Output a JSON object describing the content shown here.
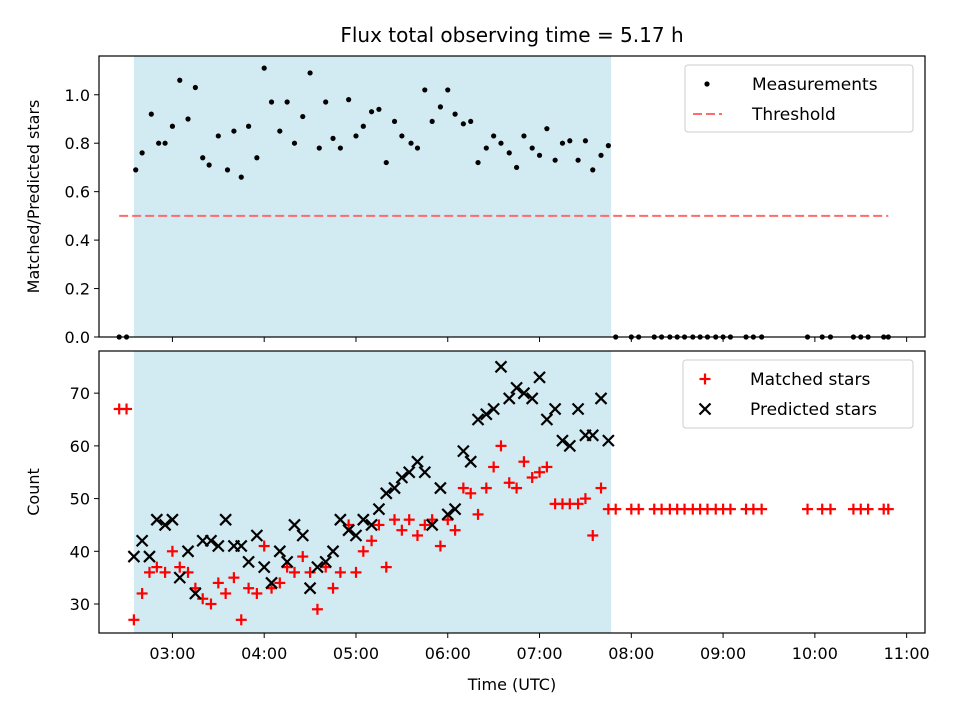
{
  "figure": {
    "title": "Flux total observing time = 5.17 h"
  },
  "colors": {
    "shade": "#add8e6",
    "threshold": "#ff6b6b",
    "matched": "#ff0000",
    "predicted": "#000000",
    "measurement": "#000000"
  },
  "chart_data": [
    {
      "type": "scatter",
      "ylabel": "Matched/Predicted stars",
      "xlim": [
        2.2,
        11.2
      ],
      "ylim": [
        0,
        1.16
      ],
      "yticks": [
        0.0,
        0.2,
        0.4,
        0.6,
        0.8,
        1.0
      ],
      "ytick_labels": [
        "0.0",
        "0.2",
        "0.4",
        "0.6",
        "0.8",
        "1.0"
      ],
      "shaded_region": [
        2.58,
        7.78
      ],
      "legend": {
        "placement": "top-right",
        "entries": [
          "Measurements",
          "Threshold"
        ]
      },
      "threshold": {
        "name": "Threshold",
        "y": 0.5,
        "x_range": [
          2.42,
          10.8
        ]
      },
      "series": [
        {
          "name": "Measurements",
          "marker": "dot",
          "points": [
            [
              2.42,
              0
            ],
            [
              2.5,
              0
            ],
            [
              2.6,
              0.69
            ],
            [
              2.67,
              0.76
            ],
            [
              2.77,
              0.92
            ],
            [
              2.85,
              0.8
            ],
            [
              2.92,
              0.8
            ],
            [
              3.0,
              0.87
            ],
            [
              3.08,
              1.06
            ],
            [
              3.17,
              0.9
            ],
            [
              3.25,
              1.03
            ],
            [
              3.33,
              0.74
            ],
            [
              3.4,
              0.71
            ],
            [
              3.5,
              0.83
            ],
            [
              3.6,
              0.69
            ],
            [
              3.67,
              0.85
            ],
            [
              3.75,
              0.66
            ],
            [
              3.83,
              0.87
            ],
            [
              3.92,
              0.74
            ],
            [
              4.0,
              1.11
            ],
            [
              4.08,
              0.97
            ],
            [
              4.17,
              0.85
            ],
            [
              4.25,
              0.97
            ],
            [
              4.33,
              0.8
            ],
            [
              4.42,
              0.91
            ],
            [
              4.5,
              1.09
            ],
            [
              4.6,
              0.78
            ],
            [
              4.67,
              0.97
            ],
            [
              4.75,
              0.82
            ],
            [
              4.83,
              0.78
            ],
            [
              4.92,
              0.98
            ],
            [
              5.0,
              0.83
            ],
            [
              5.08,
              0.87
            ],
            [
              5.17,
              0.93
            ],
            [
              5.25,
              0.94
            ],
            [
              5.33,
              0.72
            ],
            [
              5.42,
              0.89
            ],
            [
              5.5,
              0.83
            ],
            [
              5.6,
              0.8
            ],
            [
              5.67,
              0.78
            ],
            [
              5.75,
              1.02
            ],
            [
              5.83,
              0.89
            ],
            [
              5.92,
              0.95
            ],
            [
              6.0,
              1.02
            ],
            [
              6.08,
              0.92
            ],
            [
              6.17,
              0.88
            ],
            [
              6.25,
              0.89
            ],
            [
              6.33,
              0.72
            ],
            [
              6.42,
              0.78
            ],
            [
              6.5,
              0.83
            ],
            [
              6.58,
              0.8
            ],
            [
              6.67,
              0.76
            ],
            [
              6.75,
              0.7
            ],
            [
              6.83,
              0.83
            ],
            [
              6.92,
              0.78
            ],
            [
              7.0,
              0.75
            ],
            [
              7.08,
              0.86
            ],
            [
              7.17,
              0.73
            ],
            [
              7.25,
              0.8
            ],
            [
              7.33,
              0.81
            ],
            [
              7.42,
              0.73
            ],
            [
              7.5,
              0.81
            ],
            [
              7.58,
              0.69
            ],
            [
              7.67,
              0.75
            ],
            [
              7.75,
              0.79
            ],
            [
              7.83,
              0
            ],
            [
              8.0,
              0
            ],
            [
              8.08,
              0
            ],
            [
              8.25,
              0
            ],
            [
              8.33,
              0
            ],
            [
              8.42,
              0
            ],
            [
              8.5,
              0
            ],
            [
              8.58,
              0
            ],
            [
              8.67,
              0
            ],
            [
              8.75,
              0
            ],
            [
              8.83,
              0
            ],
            [
              8.92,
              0
            ],
            [
              9.0,
              0
            ],
            [
              9.08,
              0
            ],
            [
              9.25,
              0
            ],
            [
              9.33,
              0
            ],
            [
              9.42,
              0
            ],
            [
              9.92,
              0
            ],
            [
              10.08,
              0
            ],
            [
              10.17,
              0
            ],
            [
              10.42,
              0
            ],
            [
              10.5,
              0
            ],
            [
              10.58,
              0
            ],
            [
              10.75,
              0
            ],
            [
              10.8,
              0
            ]
          ]
        }
      ]
    },
    {
      "type": "scatter",
      "xlabel": "Time (UTC)",
      "ylabel": "Count",
      "xlim": [
        2.2,
        11.2
      ],
      "ylim": [
        24.5,
        78
      ],
      "xticks": [
        3,
        4,
        5,
        6,
        7,
        8,
        9,
        10,
        11
      ],
      "xtick_labels": [
        "03:00",
        "04:00",
        "05:00",
        "06:00",
        "07:00",
        "08:00",
        "09:00",
        "10:00",
        "11:00"
      ],
      "yticks": [
        30,
        40,
        50,
        60,
        70
      ],
      "ytick_labels": [
        "30",
        "40",
        "50",
        "60",
        "70"
      ],
      "shaded_region": [
        2.58,
        7.78
      ],
      "legend": {
        "placement": "top-right",
        "entries": [
          "Matched stars",
          "Predicted stars"
        ]
      },
      "series": [
        {
          "name": "Matched stars",
          "marker": "plus",
          "points": [
            [
              2.42,
              67
            ],
            [
              2.5,
              67
            ],
            [
              2.58,
              27
            ],
            [
              2.67,
              32
            ],
            [
              2.75,
              36
            ],
            [
              2.83,
              37
            ],
            [
              2.92,
              36
            ],
            [
              3.0,
              40
            ],
            [
              3.08,
              37
            ],
            [
              3.17,
              36
            ],
            [
              3.25,
              33
            ],
            [
              3.33,
              31
            ],
            [
              3.42,
              30
            ],
            [
              3.5,
              34
            ],
            [
              3.58,
              32
            ],
            [
              3.67,
              35
            ],
            [
              3.75,
              27
            ],
            [
              3.83,
              33
            ],
            [
              3.92,
              32
            ],
            [
              4.0,
              41
            ],
            [
              4.08,
              33
            ],
            [
              4.17,
              34
            ],
            [
              4.25,
              37
            ],
            [
              4.33,
              36
            ],
            [
              4.42,
              39
            ],
            [
              4.5,
              36
            ],
            [
              4.58,
              29
            ],
            [
              4.67,
              37
            ],
            [
              4.75,
              33
            ],
            [
              4.83,
              36
            ],
            [
              4.92,
              45
            ],
            [
              5.0,
              36
            ],
            [
              5.08,
              40
            ],
            [
              5.17,
              42
            ],
            [
              5.25,
              45
            ],
            [
              5.33,
              37
            ],
            [
              5.42,
              46
            ],
            [
              5.5,
              44
            ],
            [
              5.58,
              46
            ],
            [
              5.67,
              43
            ],
            [
              5.75,
              45
            ],
            [
              5.83,
              46
            ],
            [
              5.92,
              41
            ],
            [
              6.0,
              46
            ],
            [
              6.08,
              44
            ],
            [
              6.17,
              52
            ],
            [
              6.25,
              51
            ],
            [
              6.33,
              47
            ],
            [
              6.42,
              52
            ],
            [
              6.5,
              56
            ],
            [
              6.58,
              60
            ],
            [
              6.67,
              53
            ],
            [
              6.75,
              52
            ],
            [
              6.83,
              57
            ],
            [
              6.92,
              54
            ],
            [
              7.0,
              55
            ],
            [
              7.08,
              56
            ],
            [
              7.17,
              49
            ],
            [
              7.25,
              49
            ],
            [
              7.33,
              49
            ],
            [
              7.42,
              49
            ],
            [
              7.5,
              50
            ],
            [
              7.58,
              43
            ],
            [
              7.67,
              52
            ],
            [
              7.75,
              48
            ],
            [
              7.83,
              48
            ],
            [
              8.0,
              48
            ],
            [
              8.08,
              48
            ],
            [
              8.25,
              48
            ],
            [
              8.33,
              48
            ],
            [
              8.42,
              48
            ],
            [
              8.5,
              48
            ],
            [
              8.58,
              48
            ],
            [
              8.67,
              48
            ],
            [
              8.75,
              48
            ],
            [
              8.83,
              48
            ],
            [
              8.92,
              48
            ],
            [
              9.0,
              48
            ],
            [
              9.08,
              48
            ],
            [
              9.25,
              48
            ],
            [
              9.33,
              48
            ],
            [
              9.42,
              48
            ],
            [
              9.92,
              48
            ],
            [
              10.08,
              48
            ],
            [
              10.17,
              48
            ],
            [
              10.42,
              48
            ],
            [
              10.5,
              48
            ],
            [
              10.58,
              48
            ],
            [
              10.75,
              48
            ],
            [
              10.8,
              48
            ]
          ]
        },
        {
          "name": "Predicted stars",
          "marker": "x",
          "points": [
            [
              2.58,
              39
            ],
            [
              2.67,
              42
            ],
            [
              2.75,
              39
            ],
            [
              2.83,
              46
            ],
            [
              2.92,
              45
            ],
            [
              3.0,
              46
            ],
            [
              3.08,
              35
            ],
            [
              3.17,
              40
            ],
            [
              3.25,
              32
            ],
            [
              3.33,
              42
            ],
            [
              3.42,
              42
            ],
            [
              3.5,
              41
            ],
            [
              3.58,
              46
            ],
            [
              3.67,
              41
            ],
            [
              3.75,
              41
            ],
            [
              3.83,
              38
            ],
            [
              3.92,
              43
            ],
            [
              4.0,
              37
            ],
            [
              4.08,
              34
            ],
            [
              4.17,
              40
            ],
            [
              4.25,
              38
            ],
            [
              4.33,
              45
            ],
            [
              4.42,
              43
            ],
            [
              4.5,
              33
            ],
            [
              4.58,
              37
            ],
            [
              4.67,
              38
            ],
            [
              4.75,
              40
            ],
            [
              4.83,
              46
            ],
            [
              4.92,
              44
            ],
            [
              5.0,
              43
            ],
            [
              5.08,
              46
            ],
            [
              5.17,
              45
            ],
            [
              5.25,
              48
            ],
            [
              5.33,
              51
            ],
            [
              5.42,
              52
            ],
            [
              5.5,
              54
            ],
            [
              5.58,
              55
            ],
            [
              5.67,
              57
            ],
            [
              5.75,
              55
            ],
            [
              5.83,
              45
            ],
            [
              5.92,
              52
            ],
            [
              6.0,
              47
            ],
            [
              6.08,
              48
            ],
            [
              6.17,
              59
            ],
            [
              6.25,
              57
            ],
            [
              6.33,
              65
            ],
            [
              6.42,
              66
            ],
            [
              6.5,
              67
            ],
            [
              6.58,
              75
            ],
            [
              6.67,
              69
            ],
            [
              6.75,
              71
            ],
            [
              6.83,
              70
            ],
            [
              6.92,
              69
            ],
            [
              7.0,
              73
            ],
            [
              7.08,
              65
            ],
            [
              7.17,
              67
            ],
            [
              7.25,
              61
            ],
            [
              7.33,
              60
            ],
            [
              7.42,
              67
            ],
            [
              7.5,
              62
            ],
            [
              7.58,
              62
            ],
            [
              7.67,
              69
            ],
            [
              7.75,
              61
            ]
          ]
        }
      ]
    }
  ]
}
